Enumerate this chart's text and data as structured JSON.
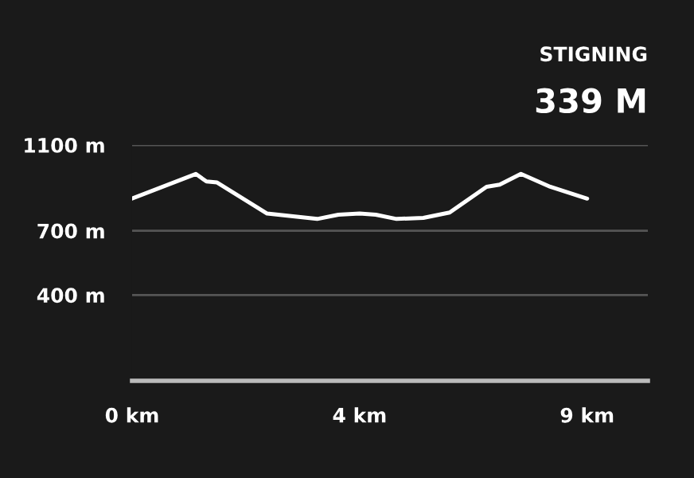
{
  "chart_data": {
    "type": "line",
    "title": "STIGNING",
    "subtitle": "339 M",
    "x": [
      0,
      1.26,
      1.47,
      1.68,
      2.67,
      3.66,
      4.08,
      4.5,
      4.82,
      5.23,
      5.76,
      6.28,
      7.01,
      7.27,
      7.69,
      8.27,
      9.0
    ],
    "series": [
      {
        "color": "#ffffff",
        "values": [
          850,
          965,
          930,
          925,
          780,
          755,
          775,
          780,
          775,
          755,
          760,
          785,
          905,
          915,
          965,
          905,
          850
        ]
      }
    ],
    "xlim": [
      0,
      10.2
    ],
    "xticks": [
      {
        "value": 0,
        "label": "0 km"
      },
      {
        "value": 4.5,
        "label": "4 km"
      },
      {
        "value": 9,
        "label": "9 km"
      }
    ],
    "ylim": [
      0,
      1100
    ],
    "yticks": [
      {
        "value": 400,
        "label": "400 m"
      },
      {
        "value": 700,
        "label": "700 m"
      },
      {
        "value": 1100,
        "label": "1100 m"
      }
    ],
    "grid": "y",
    "marker": "none",
    "line_style": "solid"
  }
}
